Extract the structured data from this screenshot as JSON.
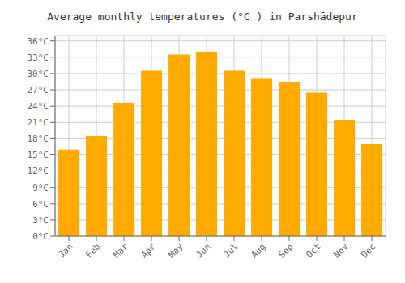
{
  "chart_data": {
    "type": "bar",
    "title": "Average monthly temperatures (°C ) in Parshādepur",
    "categories": [
      "Jan",
      "Feb",
      "Mar",
      "Apr",
      "May",
      "Jun",
      "Jul",
      "Aug",
      "Sep",
      "Oct",
      "Nov",
      "Dec"
    ],
    "values": [
      16.0,
      18.5,
      24.5,
      30.5,
      33.5,
      34.0,
      30.5,
      29.0,
      28.5,
      26.5,
      21.5,
      17.0
    ],
    "color": "#FFAA00",
    "ylim": [
      0,
      37
    ],
    "yticks": [
      {
        "value": 0,
        "label": "0°C"
      },
      {
        "value": 3,
        "label": "3°C"
      },
      {
        "value": 6,
        "label": "6°C"
      },
      {
        "value": 9,
        "label": "9°C"
      },
      {
        "value": 12,
        "label": "12°C"
      },
      {
        "value": 15,
        "label": "15°C"
      },
      {
        "value": 18,
        "label": "18°C"
      },
      {
        "value": 21,
        "label": "21°C"
      },
      {
        "value": 24,
        "label": "24°C"
      },
      {
        "value": 27,
        "label": "27°C"
      },
      {
        "value": 30,
        "label": "30°C"
      },
      {
        "value": 33,
        "label": "33°C"
      },
      {
        "value": 36,
        "label": "36°C"
      }
    ],
    "grid": true
  }
}
